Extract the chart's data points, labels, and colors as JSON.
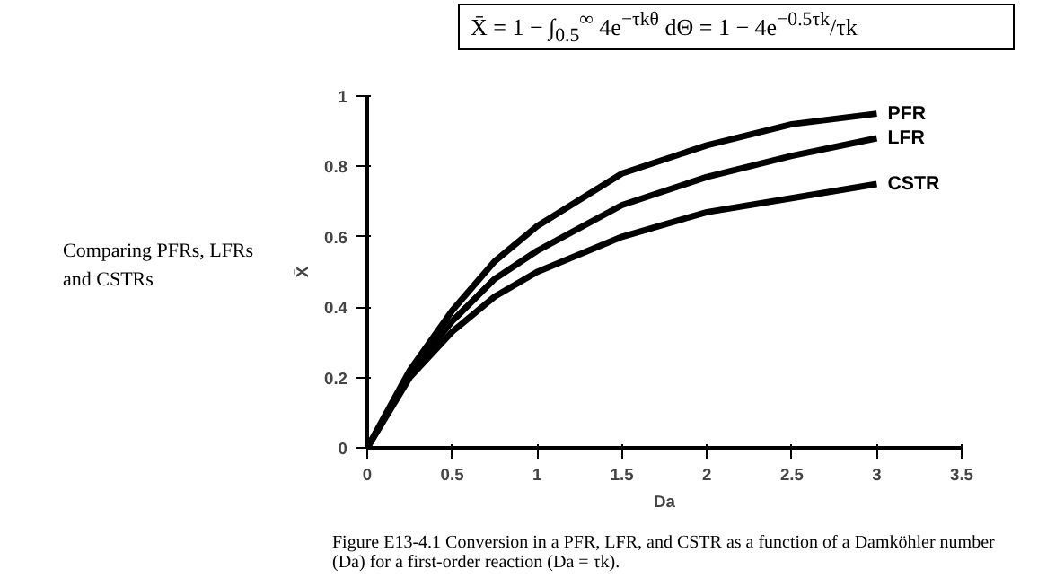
{
  "chart_data": {
    "type": "line",
    "title": "X̄ = 1 − ∫$_{0.5}$$^{∞}$ 4e$^{−τkθ}$ dΘ = 1 − 4e$^{−0.5τk}$/τk",
    "xlabel": "Da",
    "ylabel": "X̄",
    "xlim": [
      0,
      3.5
    ],
    "xticks": [
      0,
      0.5,
      1,
      1.5,
      2,
      2.5,
      3,
      3.5
    ],
    "ylim": [
      0,
      1
    ],
    "yticks": [
      0,
      0.2,
      0.4,
      0.6,
      0.8,
      1
    ],
    "grid": false,
    "marker": "none",
    "line_style": "solid",
    "annotations": [
      "Comparing PFRs, LFRs and CSTRs",
      "Figure E13-4.1 Conversion in a PFR, LFR, and CSTR as a function of a Damköhler number (Da) for a first-order reaction (Da = τk)."
    ],
    "x": [
      0,
      0.25,
      0.5,
      0.75,
      1,
      1.5,
      2,
      2.5,
      3
    ],
    "series": [
      {
        "name": "PFR",
        "color": "#000000",
        "values": [
          0,
          0.22,
          0.39,
          0.53,
          0.63,
          0.78,
          0.86,
          0.92,
          0.95
        ]
      },
      {
        "name": "LFR",
        "color": "#000000",
        "values": [
          0,
          0.21,
          0.36,
          0.48,
          0.56,
          0.69,
          0.77,
          0.83,
          0.88
        ]
      },
      {
        "name": "CSTR",
        "color": "#000000",
        "values": [
          0,
          0.2,
          0.33,
          0.43,
          0.5,
          0.6,
          0.67,
          0.71,
          0.75
        ]
      }
    ]
  }
}
